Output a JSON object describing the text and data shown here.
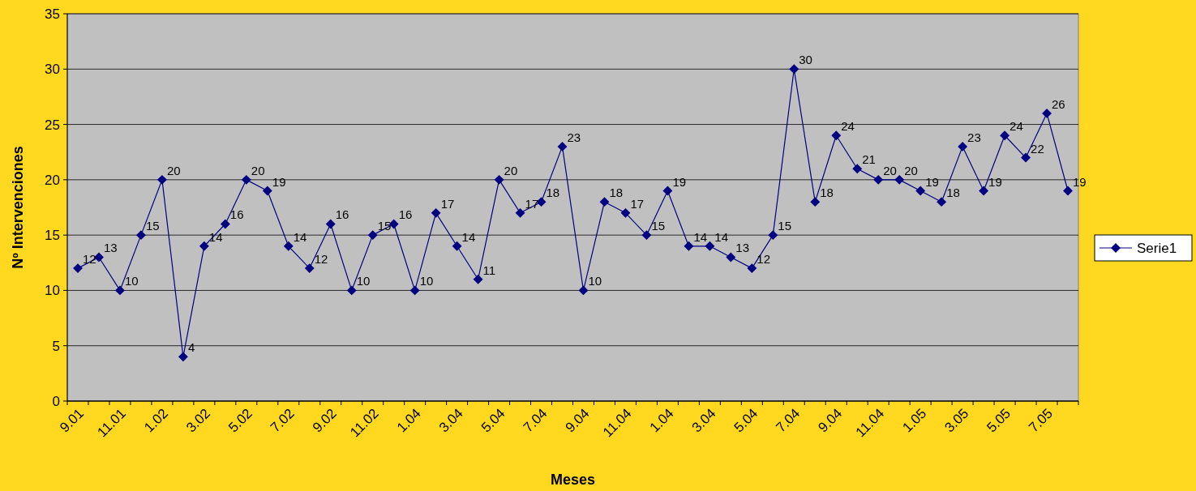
{
  "chart_data": {
    "type": "line",
    "xlabel": "Meses",
    "ylabel": "Nº Intervenciones",
    "categories": [
      "9.01",
      null,
      "11.01",
      null,
      "1.02",
      null,
      "3.02",
      null,
      "5.02",
      null,
      "7.02",
      null,
      "9.02",
      null,
      "11.02",
      null,
      "1.04",
      null,
      "3.04",
      null,
      "5.04",
      null,
      "7.04",
      null,
      "9.04",
      null,
      "11.04",
      null,
      "1.04",
      null,
      "3.04",
      null,
      "5.04",
      null,
      "7.04",
      null,
      "9.04",
      null,
      "11.04",
      null,
      "1.05",
      null,
      "3.05",
      null,
      "5.05",
      null,
      "7.05",
      null
    ],
    "series": [
      {
        "name": "Serie1",
        "color": "#000080",
        "values": [
          12,
          13,
          10,
          15,
          20,
          4,
          14,
          16,
          20,
          19,
          14,
          12,
          16,
          10,
          15,
          16,
          10,
          17,
          14,
          11,
          20,
          17,
          18,
          23,
          10,
          18,
          17,
          15,
          19,
          14,
          14,
          13,
          12,
          15,
          30,
          18,
          24,
          21,
          20,
          20,
          19,
          18,
          23,
          19,
          24,
          22,
          26,
          19
        ]
      }
    ],
    "ylim": [
      0,
      35
    ],
    "yticks": [
      0,
      5,
      10,
      15,
      20,
      25,
      30,
      35
    ],
    "grid": "y",
    "legend": "right",
    "marker": "diamond",
    "line_style": "solid",
    "data_labels": true
  }
}
